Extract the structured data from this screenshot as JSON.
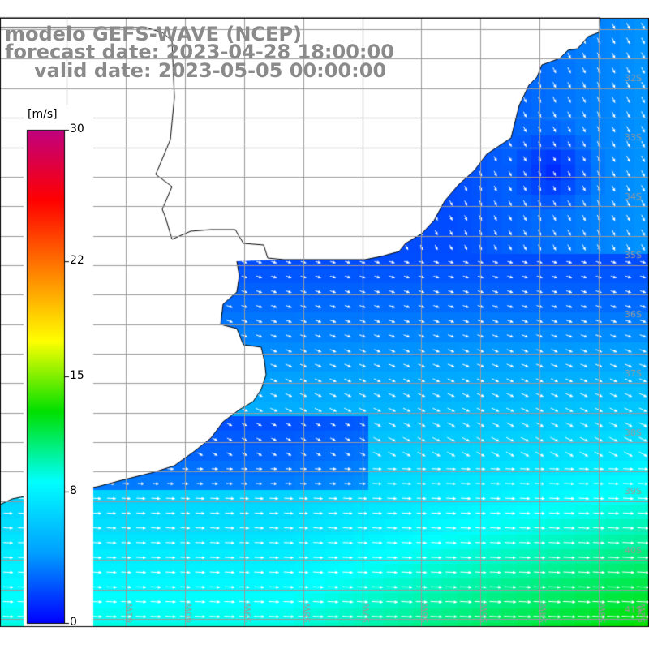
{
  "title": {
    "line1": "modelo GEFS-WAVE (NCEP)",
    "line2": "forecast date: 2023-04-28 18:00:00",
    "line3": "valid date: 2023-05-05 00:00:00"
  },
  "colorbar": {
    "unit": "[m/s]",
    "ticks": [
      {
        "label": "30",
        "value": 30
      },
      {
        "label": "22",
        "value": 22
      },
      {
        "label": "15",
        "value": 15
      },
      {
        "label": "8",
        "value": 8
      },
      {
        "label": "0",
        "value": 0
      }
    ],
    "range": [
      0,
      30
    ],
    "colors": [
      "#0000ff",
      "#00a0ff",
      "#00ffff",
      "#00e000",
      "#ffff00",
      "#ff8000",
      "#ff0000",
      "#c00080"
    ]
  },
  "map": {
    "variable": "wind speed",
    "units": "m/s",
    "land_color": "#ffffff",
    "grid_color": "#9a9a9a",
    "lat_labels": [
      "32S",
      "33S",
      "34S",
      "35S",
      "36S",
      "37S",
      "38S",
      "39S",
      "40S",
      "41S"
    ],
    "lon_labels": [
      "62W",
      "61W",
      "60W",
      "59W",
      "58W",
      "57W",
      "56W",
      "55W",
      "54W",
      "53W",
      "52W"
    ],
    "lon_range": [
      -63,
      -52
    ],
    "lat_range": [
      -42,
      -30.5
    ],
    "wind_field": {
      "base_direction": "toward east-southeast",
      "speed_min": 2,
      "speed_max": 13
    }
  }
}
